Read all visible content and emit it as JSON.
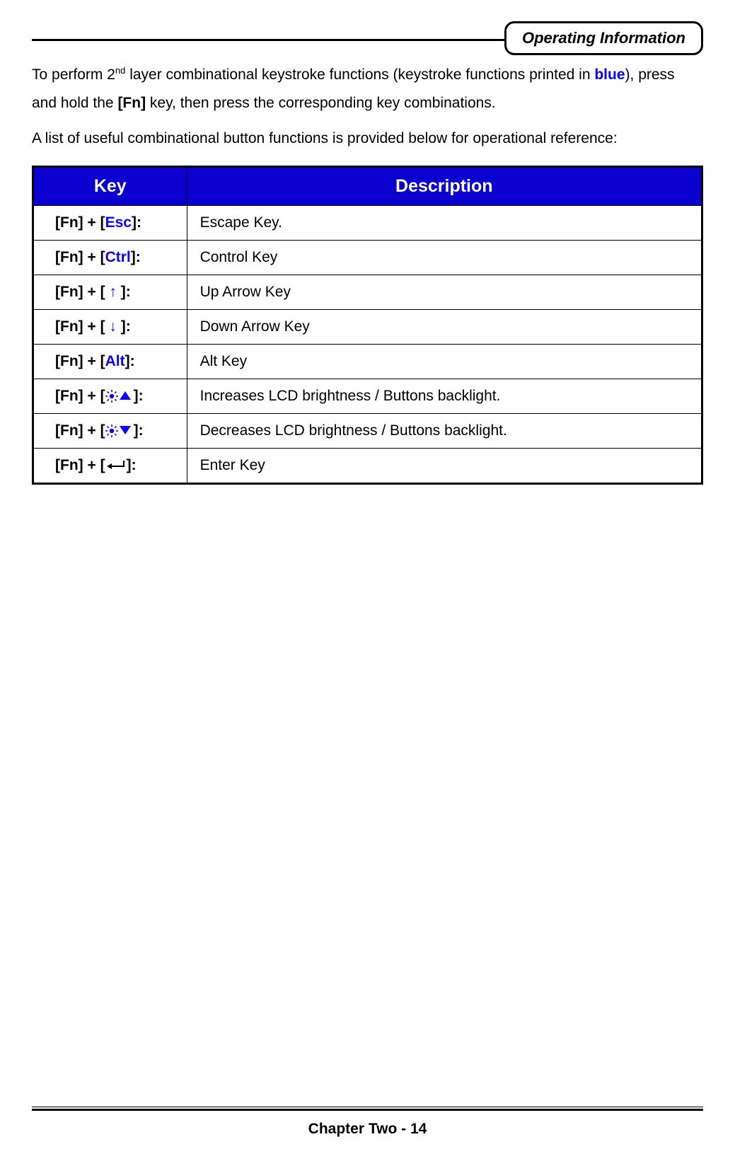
{
  "header": {
    "badge": "Operating Information"
  },
  "intro": {
    "line1_prefix": "To perform 2",
    "line1_sup": "nd",
    "line1_mid": " layer combinational keystroke functions (keystroke functions printed in ",
    "line1_blue": "blue",
    "line1_end": "),",
    "line2_a": "press and hold the ",
    "line2_fn": "[Fn]",
    "line2_b": " key, then press the corresponding key combinations.",
    "line3": "A list of useful combinational button functions is provided below for operational reference:"
  },
  "table": {
    "header_bg": "#0a00d0",
    "header_fg": "#ffffff",
    "border_color": "#000000",
    "columns": [
      "Key",
      "Description"
    ],
    "rows": [
      {
        "key_parts": [
          "[Fn] + [",
          {
            "blue": "Esc"
          },
          "]:"
        ],
        "desc": "Escape Key."
      },
      {
        "key_parts": [
          "[Fn] + [",
          {
            "blue": "Ctrl"
          },
          "]:"
        ],
        "desc": "Control Key"
      },
      {
        "key_parts": [
          "[Fn] + [ ",
          {
            "arrow": "↑"
          },
          " ]:"
        ],
        "desc": "Up Arrow Key"
      },
      {
        "key_parts": [
          "[Fn] + [ ",
          {
            "arrow": "↓"
          },
          " ]:"
        ],
        "desc": "Down Arrow Key"
      },
      {
        "key_parts": [
          "[Fn] + [",
          {
            "blue": "Alt"
          },
          "]:"
        ],
        "desc": "Alt Key"
      },
      {
        "key_parts": [
          "[Fn] + [",
          {
            "icon": "sun-up"
          },
          "]:"
        ],
        "desc": "Increases LCD brightness / Buttons backlight."
      },
      {
        "key_parts": [
          "[Fn] + [",
          {
            "icon": "sun-down"
          },
          "]:"
        ],
        "desc": "Decreases LCD brightness / Buttons backlight."
      },
      {
        "key_parts": [
          "[Fn] + [",
          {
            "icon": "enter"
          },
          "]:"
        ],
        "desc": "Enter Key"
      }
    ]
  },
  "footer": {
    "text": "Chapter Two - 14"
  },
  "colors": {
    "blue_text": "#0a00ff",
    "black": "#000000",
    "white": "#ffffff"
  }
}
